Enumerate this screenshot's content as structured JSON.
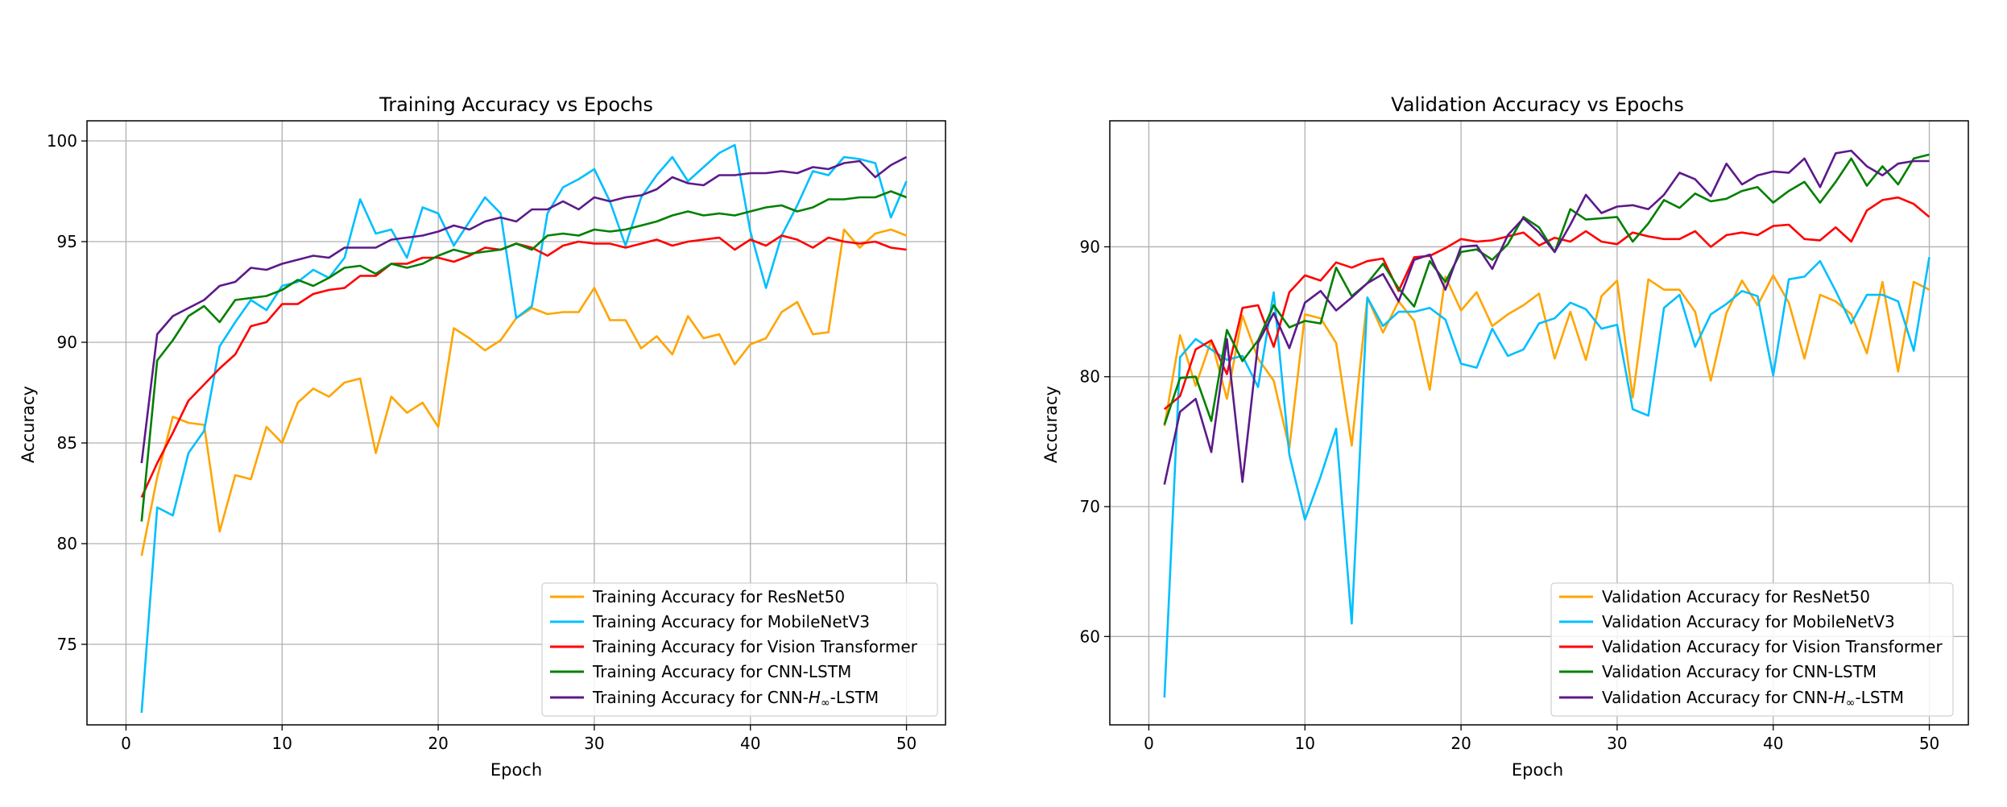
{
  "chart_data": [
    {
      "type": "line",
      "title": "Training Accuracy vs Epochs",
      "xlabel": "Epoch",
      "ylabel": "Accuracy",
      "xlim": [
        -2.5,
        52.5
      ],
      "ylim": [
        71.0,
        101.0
      ],
      "xticks": [
        0,
        10,
        20,
        30,
        40,
        50
      ],
      "xtick_labels": [
        "0",
        "10",
        "20",
        "30",
        "40",
        "50"
      ],
      "yticks": [
        75,
        80,
        85,
        90,
        95,
        100
      ],
      "ytick_labels": [
        "75",
        "80",
        "85",
        "90",
        "95",
        "100"
      ],
      "grid": true,
      "legend_position": "lower right",
      "x": [
        1,
        2,
        3,
        4,
        5,
        6,
        7,
        8,
        9,
        10,
        11,
        12,
        13,
        14,
        15,
        16,
        17,
        18,
        19,
        20,
        21,
        22,
        23,
        24,
        25,
        26,
        27,
        28,
        29,
        30,
        31,
        32,
        33,
        34,
        35,
        36,
        37,
        38,
        39,
        40,
        41,
        42,
        43,
        44,
        45,
        46,
        47,
        48,
        49,
        50
      ],
      "series": [
        {
          "name": "Training Accuracy for ResNet50",
          "color": "#ffa500",
          "values": [
            79.4,
            83.3,
            86.3,
            86.0,
            85.9,
            80.6,
            83.4,
            83.2,
            85.8,
            85.0,
            87.0,
            87.7,
            87.3,
            88.0,
            88.2,
            84.5,
            87.3,
            86.5,
            87.0,
            85.8,
            90.7,
            90.2,
            89.6,
            90.1,
            91.2,
            91.7,
            91.4,
            91.5,
            91.5,
            92.7,
            91.1,
            91.1,
            89.7,
            90.3,
            89.4,
            91.3,
            90.2,
            90.4,
            88.9,
            89.9,
            90.2,
            91.5,
            92.0,
            90.4,
            90.5,
            95.6,
            94.7,
            95.4,
            95.6,
            95.3
          ]
        },
        {
          "name": "Training Accuracy for MobileNetV3",
          "color": "#00bfff",
          "values": [
            71.6,
            81.8,
            81.4,
            84.5,
            85.6,
            89.8,
            91.0,
            92.1,
            91.6,
            92.8,
            93.0,
            93.6,
            93.2,
            94.2,
            97.1,
            95.4,
            95.6,
            94.2,
            96.7,
            96.4,
            94.8,
            96.0,
            97.2,
            96.4,
            91.2,
            91.8,
            96.4,
            97.7,
            98.1,
            98.6,
            97.0,
            94.8,
            97.2,
            98.3,
            99.2,
            98.0,
            98.7,
            99.4,
            99.8,
            95.5,
            92.7,
            95.3,
            96.8,
            98.5,
            98.3,
            99.2,
            99.1,
            98.9,
            96.2,
            98.0
          ]
        },
        {
          "name": "Training Accuracy for Vision Transformer",
          "color": "#ff0000",
          "values": [
            82.3,
            84.0,
            85.5,
            87.1,
            87.9,
            88.7,
            89.4,
            90.8,
            91.0,
            91.9,
            91.9,
            92.4,
            92.6,
            92.7,
            93.3,
            93.3,
            93.9,
            93.9,
            94.2,
            94.2,
            94.0,
            94.3,
            94.7,
            94.6,
            94.9,
            94.7,
            94.3,
            94.8,
            95.0,
            94.9,
            94.9,
            94.7,
            94.9,
            95.1,
            94.8,
            95.0,
            95.1,
            95.2,
            94.6,
            95.1,
            94.8,
            95.3,
            95.1,
            94.7,
            95.2,
            95.0,
            94.9,
            95.0,
            94.7,
            94.6
          ]
        },
        {
          "name": "Training Accuracy for CNN-LSTM",
          "color": "#008000",
          "values": [
            81.1,
            89.1,
            90.1,
            91.3,
            91.8,
            91.0,
            92.1,
            92.2,
            92.3,
            92.6,
            93.1,
            92.8,
            93.2,
            93.7,
            93.8,
            93.4,
            93.9,
            93.7,
            93.9,
            94.3,
            94.6,
            94.4,
            94.5,
            94.6,
            94.9,
            94.6,
            95.3,
            95.4,
            95.3,
            95.6,
            95.5,
            95.6,
            95.8,
            96.0,
            96.3,
            96.5,
            96.3,
            96.4,
            96.3,
            96.5,
            96.7,
            96.8,
            96.5,
            96.7,
            97.1,
            97.1,
            97.2,
            97.2,
            97.5,
            97.2
          ]
        },
        {
          "name": "Training Accuracy for CNN-$H_\\infty$-LSTM",
          "color": "#5c1a8a",
          "values": [
            84.0,
            90.4,
            91.3,
            91.7,
            92.1,
            92.8,
            93.0,
            93.7,
            93.6,
            93.9,
            94.1,
            94.3,
            94.2,
            94.7,
            94.7,
            94.7,
            95.1,
            95.2,
            95.3,
            95.5,
            95.8,
            95.6,
            96.0,
            96.2,
            96.0,
            96.6,
            96.6,
            97.0,
            96.6,
            97.2,
            97.0,
            97.2,
            97.3,
            97.6,
            98.2,
            97.9,
            97.8,
            98.3,
            98.3,
            98.4,
            98.4,
            98.5,
            98.4,
            98.7,
            98.6,
            98.9,
            99.0,
            98.2,
            98.8,
            99.2
          ]
        }
      ]
    },
    {
      "type": "line",
      "title": "Validation Accuracy vs Epochs",
      "xlabel": "Epoch",
      "ylabel": "Accuracy",
      "xlim": [
        -2.5,
        52.5
      ],
      "ylim": [
        53.2,
        99.7
      ],
      "xticks": [
        0,
        10,
        20,
        30,
        40,
        50
      ],
      "xtick_labels": [
        "0",
        "10",
        "20",
        "30",
        "40",
        "50"
      ],
      "yticks": [
        60,
        70,
        80,
        90
      ],
      "ytick_labels": [
        "60",
        "70",
        "80",
        "90"
      ],
      "grid": true,
      "legend_position": "lower right",
      "x": [
        1,
        2,
        3,
        4,
        5,
        6,
        7,
        8,
        9,
        10,
        11,
        12,
        13,
        14,
        15,
        16,
        17,
        18,
        19,
        20,
        21,
        22,
        23,
        24,
        25,
        26,
        27,
        28,
        29,
        30,
        31,
        32,
        33,
        34,
        35,
        36,
        37,
        38,
        39,
        40,
        41,
        42,
        43,
        44,
        45,
        46,
        47,
        48,
        49,
        50
      ],
      "series": [
        {
          "name": "Validation Accuracy for ResNet50",
          "color": "#ffa500",
          "values": [
            76.2,
            83.2,
            79.3,
            82.8,
            78.3,
            84.7,
            81.4,
            79.7,
            74.5,
            84.8,
            84.5,
            82.6,
            74.7,
            86.1,
            83.4,
            85.8,
            84.3,
            79.0,
            87.7,
            85.1,
            86.5,
            83.9,
            84.8,
            85.5,
            86.4,
            81.4,
            85.0,
            81.3,
            86.2,
            87.4,
            78.4,
            87.5,
            86.7,
            86.7,
            85.0,
            79.7,
            84.9,
            87.4,
            85.5,
            87.8,
            85.7,
            81.4,
            86.3,
            85.8,
            84.8,
            81.8,
            87.3,
            80.4,
            87.3,
            86.7
          ]
        },
        {
          "name": "Validation Accuracy for MobileNetV3",
          "color": "#00bfff",
          "values": [
            55.3,
            81.5,
            82.9,
            82.1,
            81.3,
            81.6,
            79.2,
            86.5,
            74.0,
            69.0,
            72.3,
            76.0,
            61.0,
            86.1,
            83.9,
            85.0,
            85.0,
            85.3,
            84.4,
            81.0,
            80.7,
            83.7,
            81.6,
            82.1,
            84.1,
            84.5,
            85.7,
            85.2,
            83.7,
            84.0,
            77.5,
            77.0,
            85.3,
            86.3,
            82.3,
            84.8,
            85.6,
            86.6,
            86.2,
            80.1,
            87.5,
            87.7,
            88.9,
            86.6,
            84.1,
            86.3,
            86.3,
            85.8,
            82.0,
            89.2
          ]
        },
        {
          "name": "Validation Accuracy for Vision Transformer",
          "color": "#ff0000",
          "values": [
            77.5,
            78.5,
            82.1,
            82.8,
            80.2,
            85.3,
            85.5,
            82.3,
            86.5,
            87.8,
            87.4,
            88.8,
            88.4,
            88.9,
            89.1,
            86.6,
            89.2,
            89.3,
            89.9,
            90.6,
            90.4,
            90.5,
            90.8,
            91.1,
            90.1,
            90.7,
            90.4,
            91.2,
            90.4,
            90.2,
            91.1,
            90.8,
            90.6,
            90.6,
            91.2,
            90.0,
            90.9,
            91.1,
            90.9,
            91.6,
            91.7,
            90.6,
            90.5,
            91.5,
            90.4,
            92.8,
            93.6,
            93.8,
            93.3,
            92.3
          ]
        },
        {
          "name": "Validation Accuracy for CNN-LSTM",
          "color": "#008000",
          "values": [
            76.3,
            79.9,
            80.0,
            76.6,
            83.6,
            81.2,
            82.8,
            85.5,
            83.8,
            84.3,
            84.1,
            88.4,
            86.2,
            87.2,
            88.7,
            86.8,
            85.4,
            88.9,
            87.3,
            89.6,
            89.8,
            89.0,
            90.2,
            92.3,
            91.5,
            89.6,
            92.9,
            92.1,
            92.2,
            92.3,
            90.4,
            91.8,
            93.6,
            93.0,
            94.1,
            93.5,
            93.7,
            94.3,
            94.6,
            93.4,
            94.3,
            95.0,
            93.4,
            95.0,
            96.8,
            94.7,
            96.2,
            94.8,
            96.8,
            97.1
          ]
        },
        {
          "name": "Validation Accuracy for CNN-$H_\\infty$-LSTM",
          "color": "#5c1a8a",
          "values": [
            71.7,
            77.3,
            78.3,
            74.2,
            82.9,
            71.9,
            82.6,
            84.9,
            82.2,
            85.7,
            86.6,
            85.1,
            86.1,
            87.2,
            87.9,
            85.8,
            89.0,
            89.4,
            86.7,
            90.0,
            90.1,
            88.3,
            90.9,
            92.2,
            91.1,
            89.6,
            91.7,
            94.0,
            92.6,
            93.1,
            93.2,
            92.9,
            94.0,
            95.7,
            95.2,
            93.9,
            96.4,
            94.8,
            95.5,
            95.8,
            95.7,
            96.8,
            94.6,
            97.2,
            97.4,
            96.2,
            95.5,
            96.4,
            96.6,
            96.6
          ]
        }
      ]
    }
  ]
}
